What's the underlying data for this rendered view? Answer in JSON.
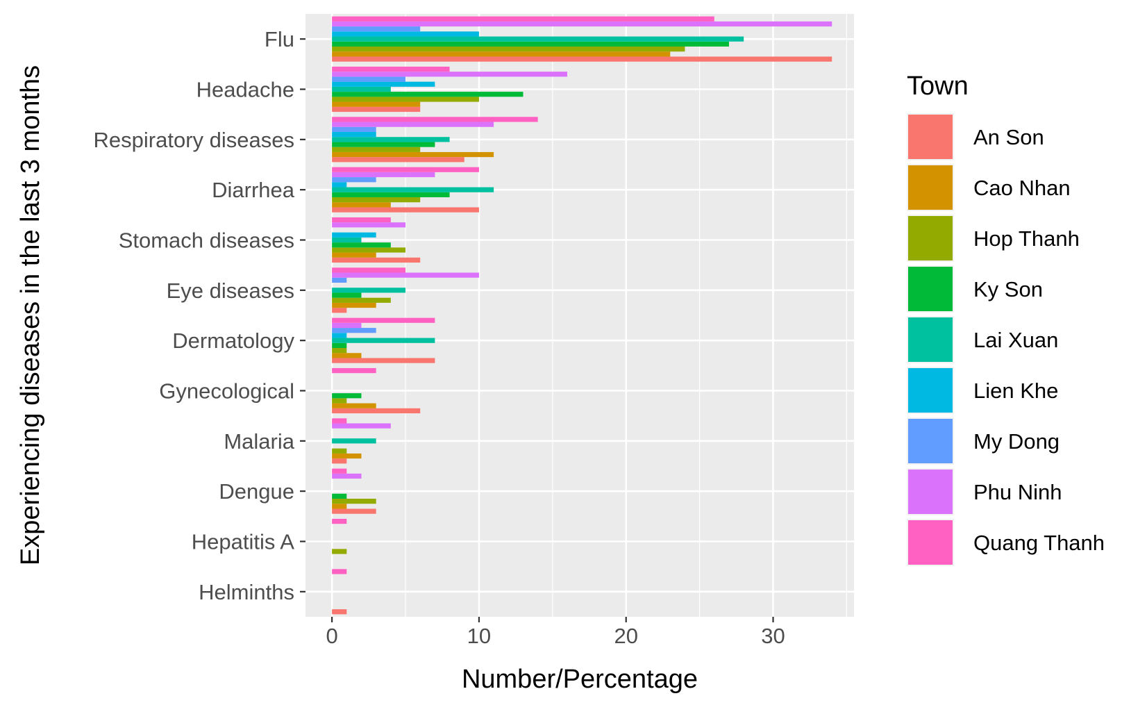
{
  "chart_data": {
    "type": "bar",
    "orientation": "horizontal",
    "xlabel": "Number/Percentage",
    "ylabel": "Experiencing diseases in the last 3 months",
    "xlim": [
      -1.8,
      35.5
    ],
    "xticks": [
      0,
      10,
      20,
      30
    ],
    "xtick_labels": [
      "0",
      "10",
      "20",
      "30"
    ],
    "grid": true,
    "legend": {
      "title": "Town",
      "position": "right"
    },
    "categories": [
      "Flu",
      "Headache",
      "Respiratory diseases",
      "Diarrhea",
      "Stomach diseases",
      "Eye diseases",
      "Dermatology",
      "Gynecological",
      "Malaria",
      "Dengue",
      "Hepatitis A",
      "Helminths"
    ],
    "series": [
      {
        "name": "An Son",
        "color": "#F8766D",
        "values": [
          34,
          6,
          9,
          10,
          6,
          1,
          7,
          6,
          1,
          3,
          null,
          1
        ]
      },
      {
        "name": "Cao Nhan",
        "color": "#D39200",
        "values": [
          23,
          6,
          11,
          4,
          3,
          3,
          2,
          3,
          2,
          1,
          null,
          null
        ]
      },
      {
        "name": "Hop Thanh",
        "color": "#93AA00",
        "values": [
          24,
          10,
          6,
          6,
          5,
          4,
          1,
          1,
          1,
          3,
          1,
          null
        ]
      },
      {
        "name": "Ky Son",
        "color": "#00BA38",
        "values": [
          27,
          13,
          7,
          8,
          4,
          2,
          1,
          2,
          null,
          1,
          null,
          null
        ]
      },
      {
        "name": "Lai Xuan",
        "color": "#00C19F",
        "values": [
          28,
          4,
          8,
          11,
          2,
          5,
          7,
          null,
          3,
          null,
          null,
          null
        ]
      },
      {
        "name": "Lien Khe",
        "color": "#00B9E3",
        "values": [
          10,
          7,
          3,
          1,
          3,
          null,
          1,
          null,
          null,
          null,
          null,
          null
        ]
      },
      {
        "name": "My Dong",
        "color": "#619CFF",
        "values": [
          6,
          5,
          3,
          3,
          null,
          1,
          3,
          null,
          null,
          null,
          null,
          null
        ]
      },
      {
        "name": "Phu Ninh",
        "color": "#DB72FB",
        "values": [
          34,
          16,
          11,
          7,
          5,
          10,
          2,
          null,
          4,
          2,
          null,
          null
        ]
      },
      {
        "name": "Quang Thanh",
        "color": "#FF61C3",
        "values": [
          26,
          8,
          14,
          10,
          4,
          5,
          7,
          3,
          1,
          1,
          1,
          1
        ]
      }
    ]
  }
}
